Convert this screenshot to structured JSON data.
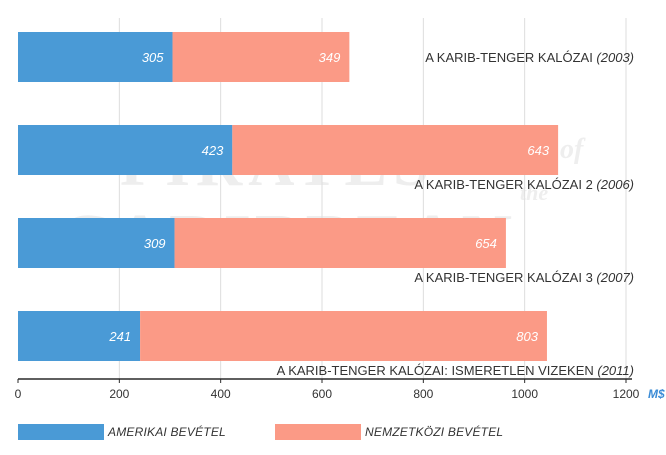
{
  "colors": {
    "domestic": "#4a9ad6",
    "international": "#fb9a86",
    "grid": "#dddddd",
    "axis": "#2a2a2a",
    "unit": "#3a8bd6",
    "watermark": "#eeeeee"
  },
  "watermark": {
    "line1": "PIRATES",
    "of": "of",
    "the": "the",
    "line2": "CARIBBEAN"
  },
  "legend": {
    "domestic_label": "AMERIKAI BEVÉTEL",
    "international_label": "NEMZETKÖZI BEVÉTEL"
  },
  "chart_data": {
    "type": "bar",
    "orientation": "horizontal",
    "stacked": true,
    "categories": [
      {
        "name": "A KARIB-TENGER KALÓZAI",
        "year": "(2003)"
      },
      {
        "name": "A KARIB-TENGER KALÓZAI 2",
        "year": "(2006)"
      },
      {
        "name": "A KARIB-TENGER KALÓZAI 3",
        "year": "(2007)"
      },
      {
        "name": "A KARIB-TENGER KALÓZAI: ISMERETLEN VIZEKEN",
        "year": "(2011)"
      }
    ],
    "series": [
      {
        "name": "AMERIKAI BEVÉTEL",
        "values": [
          305,
          423,
          309,
          241
        ]
      },
      {
        "name": "NEMZETKÖZI BEVÉTEL",
        "values": [
          349,
          643,
          654,
          803
        ]
      }
    ],
    "x_ticks": [
      0,
      200,
      400,
      600,
      800,
      1000,
      1200
    ],
    "x_unit": "M$",
    "xlim": [
      0,
      1200
    ],
    "grid": "vertical"
  }
}
